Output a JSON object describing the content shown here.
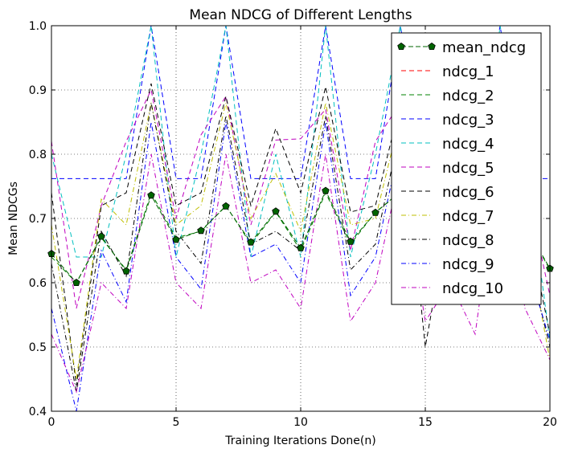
{
  "chart_data": {
    "type": "line",
    "title": "Mean NDCG of Different Lengths",
    "xlabel": "Training Iterations Done(n)",
    "ylabel": "Mean NDCGs",
    "xlim": [
      0,
      20
    ],
    "ylim": [
      0.4,
      1.0
    ],
    "x_ticks": [
      0,
      5,
      10,
      15,
      20
    ],
    "y_ticks": [
      0.4,
      0.5,
      0.6,
      0.7,
      0.8,
      0.9,
      1.0
    ],
    "x_tick_labels": [
      "0",
      "5",
      "10",
      "15",
      "20"
    ],
    "y_tick_labels": [
      "0.4",
      "0.5",
      "0.6",
      "0.7",
      "0.8",
      "0.9",
      "1.0"
    ],
    "grid": true,
    "legend_position": "top-right",
    "x": [
      0,
      1,
      2,
      3,
      4,
      5,
      6,
      7,
      8,
      9,
      10,
      11,
      12,
      13,
      14,
      15,
      16,
      17,
      18,
      19,
      20
    ],
    "series": [
      {
        "name": "mean_ndcg",
        "color": "#006400",
        "style": "solid-dash",
        "marker": "pentagon",
        "values": [
          0.645,
          0.6,
          0.672,
          0.618,
          0.736,
          0.667,
          0.681,
          0.719,
          0.663,
          0.711,
          0.654,
          0.743,
          0.664,
          0.709,
          0.742,
          0.6,
          0.72,
          0.68,
          0.74,
          0.69,
          0.622
        ]
      },
      {
        "name": "ndcg_1",
        "color": "#ff0000",
        "style": "dashed",
        "values": [
          1.0,
          1.0,
          1.0,
          1.0,
          1.0,
          1.0,
          1.0,
          1.0,
          1.0,
          1.0,
          1.0,
          1.0,
          1.0,
          1.0,
          1.0,
          1.0,
          1.0,
          1.0,
          1.0,
          1.0,
          1.0
        ]
      },
      {
        "name": "ndcg_2",
        "color": "#008000",
        "style": "dashed",
        "values": [
          0.64,
          0.6,
          0.67,
          0.62,
          0.74,
          0.67,
          0.68,
          0.72,
          0.66,
          0.71,
          0.65,
          0.74,
          0.66,
          0.71,
          0.74,
          0.6,
          0.72,
          0.68,
          0.74,
          0.69,
          0.62
        ]
      },
      {
        "name": "ndcg_3",
        "color": "#0000ff",
        "style": "dashed",
        "values": [
          0.762,
          0.762,
          0.762,
          0.762,
          1.0,
          0.762,
          0.762,
          1.0,
          0.762,
          0.762,
          0.762,
          1.0,
          0.762,
          0.762,
          1.0,
          0.762,
          0.762,
          0.762,
          1.0,
          0.762,
          0.762
        ]
      },
      {
        "name": "ndcg_4",
        "color": "#00bfbf",
        "style": "dashed",
        "values": [
          0.8,
          0.64,
          0.64,
          0.8,
          1.0,
          0.64,
          0.8,
          1.0,
          0.64,
          0.8,
          0.64,
          1.0,
          0.64,
          0.8,
          1.0,
          0.64,
          0.8,
          0.64,
          1.0,
          0.8,
          0.51
        ]
      },
      {
        "name": "ndcg_5",
        "color": "#bf00bf",
        "style": "dashed",
        "values": [
          0.82,
          0.56,
          0.72,
          0.82,
          0.9,
          0.7,
          0.83,
          0.89,
          0.69,
          0.822,
          0.824,
          0.87,
          0.65,
          0.82,
          0.88,
          0.64,
          0.82,
          0.69,
          0.9,
          0.76,
          0.58
        ]
      },
      {
        "name": "ndcg_6",
        "color": "#000000",
        "style": "dashed",
        "values": [
          0.74,
          0.44,
          0.72,
          0.74,
          0.91,
          0.72,
          0.74,
          0.89,
          0.72,
          0.84,
          0.74,
          0.905,
          0.71,
          0.72,
          0.88,
          0.5,
          0.72,
          0.7,
          0.9,
          0.71,
          0.52
        ]
      },
      {
        "name": "ndcg_7",
        "color": "#bfbf00",
        "style": "dashdot",
        "values": [
          0.69,
          0.45,
          0.73,
          0.69,
          0.88,
          0.69,
          0.72,
          0.88,
          0.7,
          0.77,
          0.68,
          0.88,
          0.69,
          0.7,
          0.86,
          0.6,
          0.7,
          0.66,
          0.88,
          0.69,
          0.48
        ]
      },
      {
        "name": "ndcg_8",
        "color": "#000000",
        "style": "dashdot",
        "values": [
          0.63,
          0.43,
          0.68,
          0.61,
          0.88,
          0.68,
          0.63,
          0.86,
          0.66,
          0.68,
          0.65,
          0.86,
          0.62,
          0.66,
          0.84,
          0.59,
          0.66,
          0.64,
          0.86,
          0.66,
          0.5
        ]
      },
      {
        "name": "ndcg_9",
        "color": "#0000ff",
        "style": "dashdot",
        "values": [
          0.56,
          0.4,
          0.65,
          0.57,
          0.85,
          0.64,
          0.59,
          0.85,
          0.64,
          0.66,
          0.6,
          0.85,
          0.58,
          0.64,
          0.82,
          0.58,
          0.64,
          0.62,
          0.84,
          0.64,
          0.51
        ]
      },
      {
        "name": "ndcg_10",
        "color": "#bf00bf",
        "style": "dashdot",
        "values": [
          0.52,
          0.43,
          0.6,
          0.56,
          0.8,
          0.6,
          0.56,
          0.8,
          0.6,
          0.62,
          0.56,
          0.8,
          0.54,
          0.6,
          0.78,
          0.54,
          0.6,
          0.52,
          0.8,
          0.56,
          0.48
        ]
      }
    ]
  }
}
